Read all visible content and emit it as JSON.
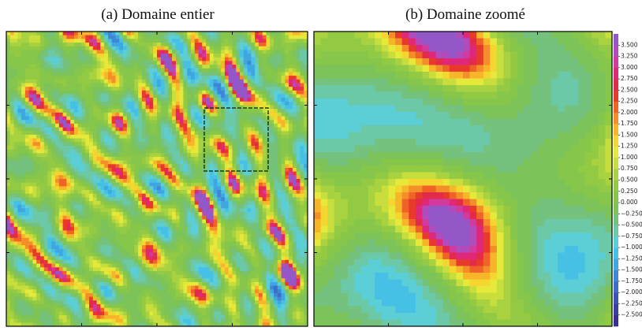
{
  "chart_data": {
    "type": "contour",
    "panels": [
      {
        "title": "(a) Domaine entier"
      },
      {
        "title": "(b) Domaine zoomé"
      }
    ],
    "colorbar": {
      "lim": [
        -2.75,
        3.75
      ],
      "ticks": [
        {
          "value": 3.5,
          "label": "3.500"
        },
        {
          "value": 3.25,
          "label": "3.250"
        },
        {
          "value": 3,
          "label": "3.000"
        },
        {
          "value": 2.75,
          "label": "2.750"
        },
        {
          "value": 2.5,
          "label": "2.500"
        },
        {
          "value": 2.25,
          "label": "2.250"
        },
        {
          "value": 2,
          "label": "2.000"
        },
        {
          "value": 1.75,
          "label": "1.750"
        },
        {
          "value": 1.5,
          "label": "1.500"
        },
        {
          "value": 1.25,
          "label": "1.250"
        },
        {
          "value": 1,
          "label": "1.000"
        },
        {
          "value": 0.75,
          "label": "0.750"
        },
        {
          "value": 0.5,
          "label": "0.500"
        },
        {
          "value": 0.25,
          "label": "0.250"
        },
        {
          "value": 0,
          "label": "0.000"
        },
        {
          "value": -0.25,
          "label": "−0.250"
        },
        {
          "value": -0.5,
          "label": "−0.500"
        },
        {
          "value": -0.75,
          "label": "−0.750"
        },
        {
          "value": -1,
          "label": "−1.000"
        },
        {
          "value": -1.25,
          "label": "−1.250"
        },
        {
          "value": -1.5,
          "label": "−1.500"
        },
        {
          "value": -1.75,
          "label": "−1.750"
        },
        {
          "value": -2,
          "label": "−2.000"
        },
        {
          "value": -2.25,
          "label": "−2.250"
        },
        {
          "value": -2.5,
          "label": "−2.500"
        }
      ],
      "colors": [
        "#3a2f8f",
        "#3b3f9c",
        "#3d55b0",
        "#3f6cc4",
        "#3f86d6",
        "#40a6e0",
        "#46c0e4",
        "#5ccfd6",
        "#6cc9a8",
        "#74c27e",
        "#7cc35a",
        "#86c64a",
        "#93ca44",
        "#a8d240",
        "#c8de3c",
        "#e6e83a",
        "#f5d52f",
        "#f7b52a",
        "#f48e28",
        "#ef6326",
        "#e83a2a",
        "#e22a4a",
        "#e0287a",
        "#d23aa0",
        "#b04cbc",
        "#9457c8"
      ]
    }
  }
}
